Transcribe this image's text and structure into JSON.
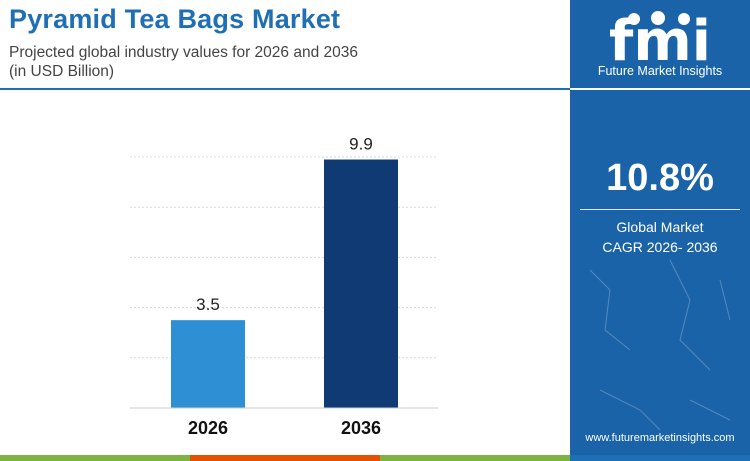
{
  "chart_data": {
    "type": "bar",
    "title": "Pyramid Tea Bags Market",
    "subtitle_lines": [
      "Projected global industry values for 2026 and 2036",
      "(in USD Billion)"
    ],
    "categories": [
      "2026",
      "2036"
    ],
    "values": [
      3.5,
      9.9
    ],
    "value_labels": [
      "3.5",
      "9.9"
    ],
    "bar_colors": [
      "#2f8fd4",
      "#0f3a73"
    ],
    "ylim": [
      0,
      10
    ],
    "grid": true,
    "legend": "none",
    "xlabel": "",
    "ylabel": ""
  },
  "brand": {
    "logo_text": "fmi",
    "name": "Future Market Insights",
    "website": "www.futuremarketinsights.com"
  },
  "stat": {
    "value": "10.8%",
    "label_line1": "Global Market",
    "label_line2": "CAGR 2026- 2036"
  },
  "colors": {
    "accent": "#1f6fb6",
    "panel": "#1a63a8",
    "bottom_bar": [
      "#7cb342",
      "#e65100",
      "#7cb342",
      "#1f6fb6"
    ]
  }
}
